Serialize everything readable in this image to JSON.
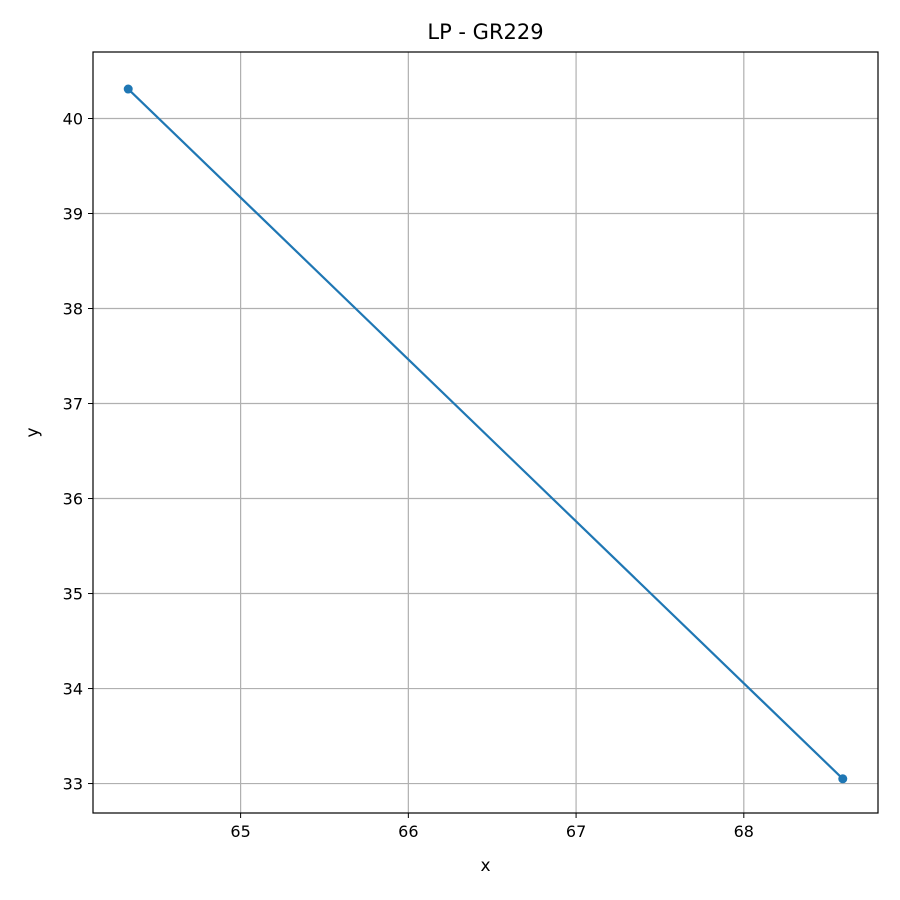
{
  "chart_data": {
    "type": "line",
    "title": "LP - GR229",
    "xlabel": "x",
    "ylabel": "y",
    "xlim": [
      64.12,
      68.8
    ],
    "ylim": [
      32.69,
      40.7
    ],
    "xticks": [
      65,
      66,
      67,
      68
    ],
    "xtick_labels": [
      "65",
      "66",
      "67",
      "68"
    ],
    "yticks": [
      33,
      34,
      35,
      36,
      37,
      38,
      39,
      40
    ],
    "ytick_labels": [
      "33",
      "34",
      "35",
      "36",
      "37",
      "38",
      "39",
      "40"
    ],
    "grid": true,
    "legend": "none",
    "series": [
      {
        "x": [
          64.33,
          68.59
        ],
        "y": [
          40.31,
          33.05
        ],
        "markers": true
      }
    ]
  },
  "colors": {
    "line": "#1f77b4",
    "grid": "#b0b0b0",
    "axes": "#000000",
    "background": "#ffffff"
  }
}
